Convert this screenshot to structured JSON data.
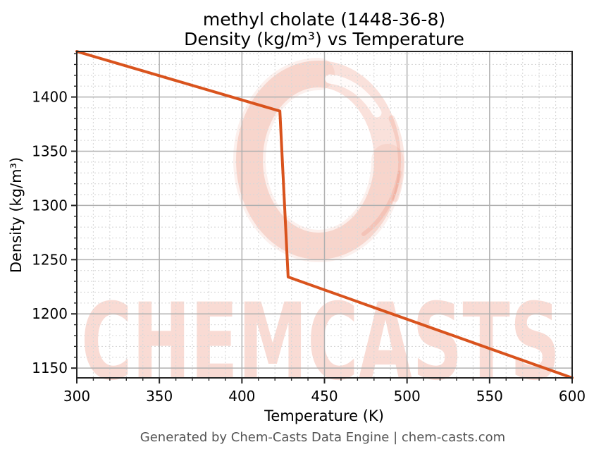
{
  "figure": {
    "title_line1": "methyl cholate (1448-36-8)",
    "title_line2": "Density (kg/m³) vs Temperature",
    "footer": "Generated by Chem-Casts Data Engine | chem-casts.com",
    "watermark_text": "CHEMCASTS",
    "watermark_logo": "brush-circle"
  },
  "chart_data": {
    "type": "line",
    "title": "methyl cholate (1448-36-8) Density (kg/m³) vs Temperature",
    "xlabel": "Temperature (K)",
    "ylabel": "Density (kg/m³)",
    "xlim": [
      300,
      600
    ],
    "ylim": [
      1141,
      1442
    ],
    "xticks": [
      300,
      350,
      400,
      450,
      500,
      550,
      600
    ],
    "yticks": [
      1150,
      1200,
      1250,
      1300,
      1350,
      1400
    ],
    "minor_tick_step_x": 10,
    "minor_tick_step_y": 10,
    "grid": true,
    "series": [
      {
        "name": "Density (kg/m³)",
        "color": "#d9531d",
        "points": [
          [
            300,
            1442
          ],
          [
            423,
            1387
          ],
          [
            428,
            1234
          ],
          [
            600,
            1141
          ]
        ]
      }
    ]
  },
  "colors": {
    "accent_line": "#d9531d",
    "spine": "#262626",
    "tick": "#262626",
    "grid_major": "#b0b0b0",
    "grid_minor": "#d8d8d8",
    "title_text": "#000000",
    "tick_text": "#000000",
    "footer_text": "#555555",
    "watermark_base": "230,104,74"
  }
}
